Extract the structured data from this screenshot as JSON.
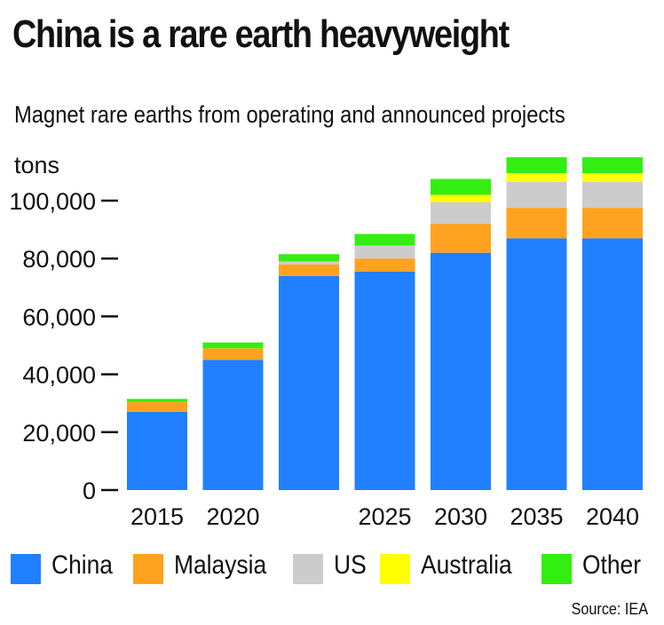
{
  "header": {
    "title": "China is a rare earth heavyweight",
    "subtitle": "Magnet rare earths from operating and announced projects"
  },
  "chart_data": {
    "type": "bar",
    "stacked": true,
    "unit_label": "tons",
    "ylim": [
      0,
      115000
    ],
    "yticks": [
      0,
      20000,
      40000,
      60000,
      80000,
      100000
    ],
    "ytick_labels": [
      "0",
      "20,000",
      "40,000",
      "60,000",
      "80,000",
      "100,000"
    ],
    "categories": [
      "2015",
      "2020",
      "",
      "2025",
      "2030",
      "2035",
      "2040"
    ],
    "series": [
      {
        "name": "China",
        "color": "#2080FF",
        "values": [
          27000,
          45000,
          74000,
          75500,
          82000,
          87000,
          87000
        ]
      },
      {
        "name": "Malaysia",
        "color": "#FFA21F",
        "values": [
          3500,
          4000,
          4000,
          4500,
          10000,
          10500,
          10500
        ]
      },
      {
        "name": "US",
        "color": "#CCCCCC",
        "values": [
          0,
          0,
          1000,
          4500,
          7500,
          9000,
          9000
        ]
      },
      {
        "name": "Australia",
        "color": "#FFFF00",
        "values": [
          0,
          0,
          0,
          0,
          2500,
          3000,
          3000
        ]
      },
      {
        "name": "Other",
        "color": "#33EE11",
        "values": [
          1000,
          2000,
          2500,
          4000,
          5500,
          5500,
          5500
        ]
      }
    ],
    "legend_position": "bottom",
    "grid": false
  },
  "footer": {
    "source": "Source: IEA"
  }
}
